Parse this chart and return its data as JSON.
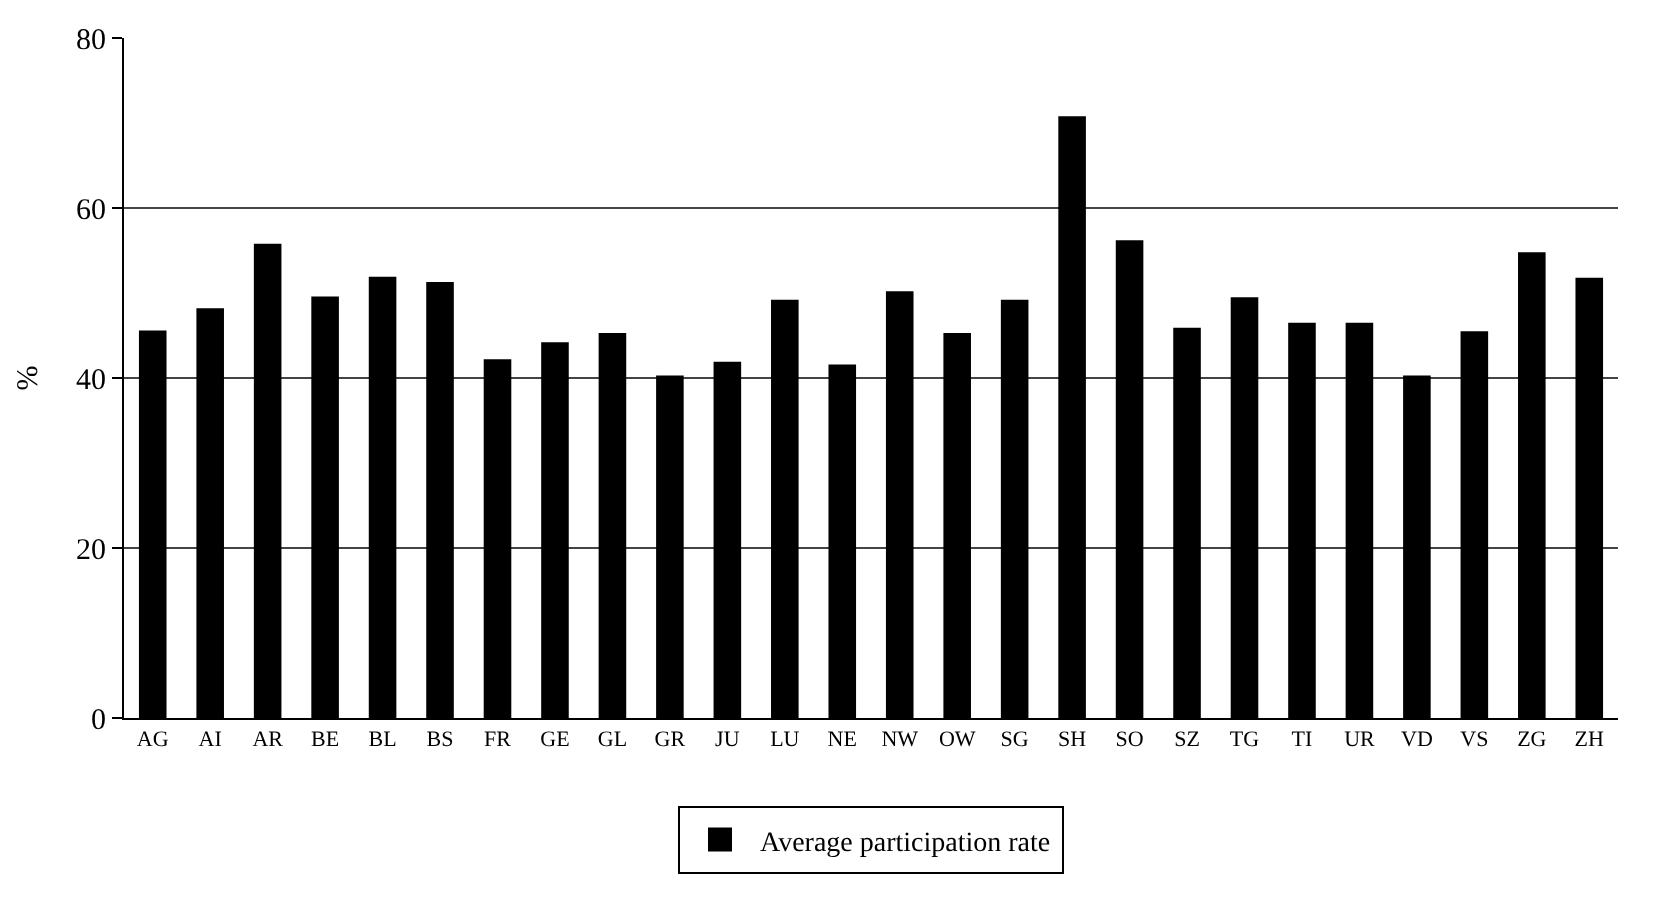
{
  "chart_data": {
    "type": "bar",
    "ylabel": "%",
    "categories": [
      "AG",
      "AI",
      "AR",
      "BE",
      "BL",
      "BS",
      "FR",
      "GE",
      "GL",
      "GR",
      "JU",
      "LU",
      "NE",
      "NW",
      "OW",
      "SG",
      "SH",
      "SO",
      "SZ",
      "TG",
      "TI",
      "UR",
      "VD",
      "VS",
      "ZG",
      "ZH"
    ],
    "series": [
      {
        "name": "Average participation rate",
        "color": "#000000",
        "values": [
          45.6,
          48.2,
          55.8,
          49.6,
          51.9,
          51.3,
          42.2,
          44.2,
          45.3,
          40.3,
          41.9,
          49.2,
          41.6,
          50.2,
          45.3,
          49.2,
          70.8,
          56.2,
          45.9,
          49.5,
          46.5,
          46.5,
          40.3,
          45.5,
          54.8,
          51.8
        ]
      }
    ],
    "ylim": [
      0,
      80
    ],
    "yticks": [
      0,
      20,
      40,
      60,
      80
    ],
    "grid": "y",
    "legend": "bottom"
  }
}
